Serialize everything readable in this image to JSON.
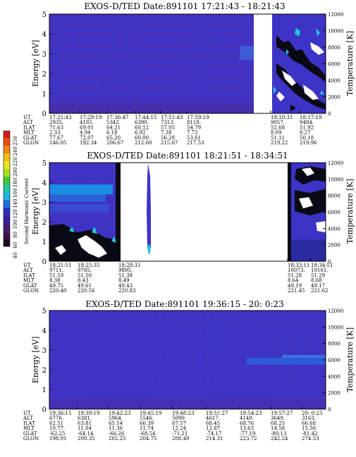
{
  "chart_data": [
    {
      "type": "heatmap",
      "title": "EXOS-D/TED   Date:891101  17:21:43 - 18:21:43",
      "ylabel": "Energy [eV]",
      "y2label": "Temperature [K]",
      "ylim": [
        0,
        5
      ],
      "y2lim": [
        0,
        12000
      ],
      "yticks": [
        "0",
        "1",
        "2",
        "3",
        "4",
        "5"
      ],
      "y2ticks": [
        "0",
        "2000",
        "4000",
        "6000",
        "8000",
        "10000",
        "12000"
      ],
      "data_gaps": [
        [
          18.1,
          18.3
        ]
      ],
      "colorscale": "blue-dominant, intense (white/black/cyan) near end",
      "ephemeris": {
        "labels": [
          "UT",
          "ALT",
          "ILAT",
          "MLT",
          "GLAT",
          "GLON"
        ],
        "columns": [
          [
            "17:21:43",
            "2935.",
            "71.63",
            "2.33",
            "77.67",
            "146.05"
          ],
          [
            "17:29:19",
            "4185.",
            "69.01",
            "4.94",
            "72.07",
            "192.34"
          ],
          [
            "17:36:47",
            "5342.",
            "64.21",
            "6.18",
            "65.20",
            "206.67"
          ],
          [
            "17:44:15",
            "6390.",
            "60.12",
            "6.92",
            "60.00",
            "212.60"
          ],
          [
            "17:51:43",
            "7313.",
            "57.05",
            "7.38",
            "56.28",
            "215.67"
          ],
          [
            "17:59:19",
            "8118.",
            "54.79",
            "7.72",
            "53.61",
            "217.53"
          ],
          [
            "18:10:31",
            "9057.",
            "52.68",
            "8.09",
            "51.11",
            "219.22"
          ],
          [
            "18:17:19",
            "9484.",
            "51.92",
            "8.27",
            "50.18",
            "219.96"
          ]
        ]
      }
    },
    {
      "type": "heatmap",
      "title": "EXOS-D/TED   Date:891101  18:21:51 - 18:34:51",
      "ylabel": "Energy [eV]",
      "y2label": "Temperature [K]",
      "ylim": [
        0,
        5
      ],
      "y2lim": [
        0,
        12000
      ],
      "yticks": [
        "0",
        "1",
        "2",
        "3",
        "4",
        "5"
      ],
      "y2ticks": [
        "0",
        "2000",
        "4000",
        "6000",
        "8000",
        "10000",
        "12000"
      ],
      "colorbar": {
        "label": "Second Harmonic Current",
        "ticks": [
          "40",
          "60",
          "80",
          "100",
          "120",
          "140",
          "160",
          "180",
          "200",
          "220",
          "240",
          "250"
        ]
      },
      "ephemeris": {
        "labels": [
          "UT",
          "ALT",
          "ILAT",
          "MLT",
          "GLAT",
          "GLON"
        ],
        "columns": [
          [
            "18:21:51",
            "9711.",
            "51.59",
            "8.38",
            "49.75",
            "220.40"
          ],
          [
            "18:25:35",
            "9785.",
            "51.50",
            "8.43",
            "49.61",
            "220.56"
          ],
          [
            "18:28:31",
            "9895.",
            "51.38",
            "8.49",
            "49.43",
            "220.83"
          ],
          [
            "18:33:11",
            "10073.",
            "51.28",
            "8.64",
            "49.19",
            "221.45"
          ],
          [
            "18:34:51",
            "10101.",
            "51.29",
            "8.68",
            "49.17",
            "221.62"
          ]
        ]
      }
    },
    {
      "type": "heatmap",
      "title": "EXOS-D/TED   Date:891101  19:36:15 - 20: 0:23",
      "ylabel": "Energy [eV]",
      "y2label": "Temperature [K]",
      "ylim": [
        0,
        5
      ],
      "y2lim": [
        0,
        12000
      ],
      "yticks": [
        "0",
        "1",
        "2",
        "3",
        "4",
        "5"
      ],
      "y2ticks": [
        "0",
        "2000",
        "4000",
        "6000",
        "8000",
        "10000",
        "12000"
      ],
      "ephemeris": {
        "labels": [
          "UT",
          "ALT",
          "ILAT",
          "MLT",
          "GLAT",
          "GLON"
        ],
        "columns": [
          [
            "19:36:15",
            "6776.",
            "62.51",
            "10.77",
            "-62.25",
            "198.91"
          ],
          [
            "19:39:19",
            "6381.",
            "63.81",
            "11.04",
            "-64.14",
            "200.35"
          ],
          [
            "19:42:23",
            "5964.",
            "65.14",
            "11.36",
            "-66.26",
            "202.25"
          ],
          [
            "19:45:19",
            "5546.",
            "66.39",
            "11.74",
            "-68.54",
            "204.75"
          ],
          [
            "19:48:23",
            "5090.",
            "67.57",
            "12.24",
            "-71.21",
            "208.49"
          ],
          [
            "19:51:27",
            "4617.",
            "68.45",
            "12.87",
            "-74.17",
            "214.31"
          ],
          [
            "19:54:23",
            "4149.",
            "68.76",
            "13.63",
            "-77.19",
            "223.72"
          ],
          [
            "19:57:27",
            "3649.",
            "68.25",
            "14.58",
            "-80.13",
            "242.24"
          ],
          [
            "20: 0:23",
            "3163.",
            "66.68",
            "15.56",
            "-81.42",
            "274.53"
          ]
        ]
      }
    }
  ]
}
